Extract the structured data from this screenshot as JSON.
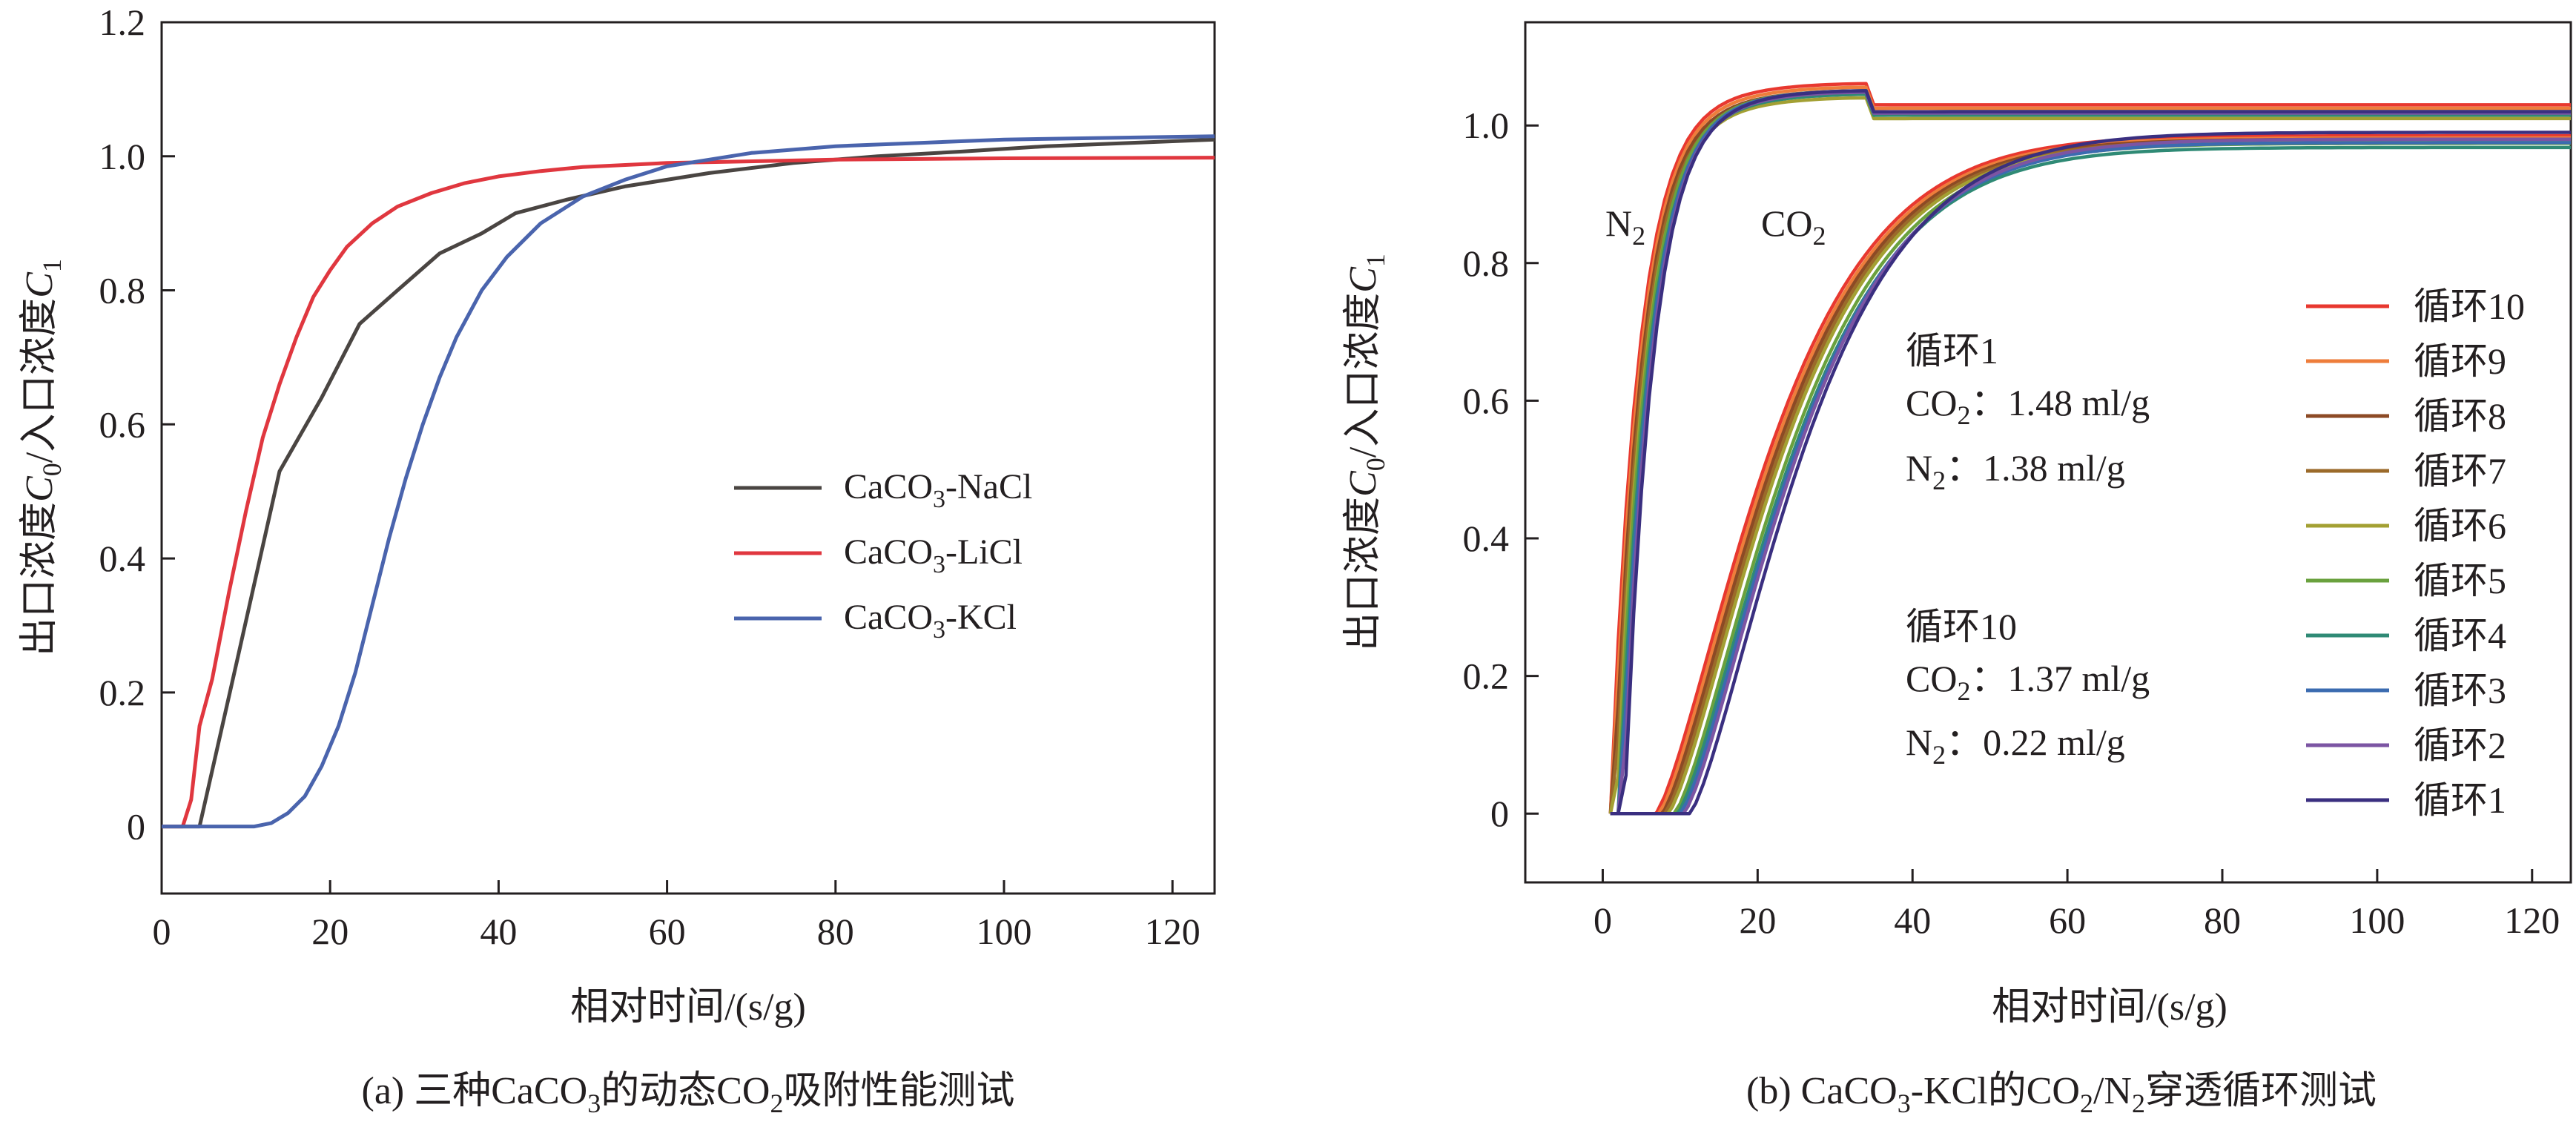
{
  "chart_data": [
    {
      "type": "line",
      "title": "三种CaCO₃的动态CO₂吸附性能测试",
      "caption": {
        "prefix": "(a) 三种CaCO",
        "sub1": "3",
        "mid": "的动态CO",
        "sub2": "2",
        "suffix": "吸附性能测试"
      },
      "xlabel": "相对时间/(s/g)",
      "ylabel": {
        "part1": "出口浓度",
        "sym1": "C",
        "sub1": "0",
        "part2": "/入口浓度",
        "sym2": "C",
        "sub2": "1"
      },
      "xlim": [
        0,
        125
      ],
      "ylim": [
        -0.1,
        1.2
      ],
      "xticks": [
        0,
        20,
        40,
        60,
        80,
        100,
        120
      ],
      "xtick_labels": [
        "0",
        "20",
        "40",
        "60",
        "80",
        "100",
        "120"
      ],
      "yticks": [
        0,
        0.2,
        0.4,
        0.6,
        0.8,
        1.0,
        1.2
      ],
      "ytick_labels": [
        "0",
        "0.2",
        "0.4",
        "0.6",
        "0.8",
        "1.0",
        "1.2"
      ],
      "legend_position": "center-right",
      "series": [
        {
          "name": "CaCO₃-NaCl",
          "label_base": "CaCO",
          "label_sub": "3",
          "label_rest": "-NaCl",
          "color": "#4a4542",
          "points": [
            [
              0,
              0
            ],
            [
              4.5,
              0
            ],
            [
              9,
              0.25
            ],
            [
              14,
              0.53
            ],
            [
              19,
              0.64
            ],
            [
              23.5,
              0.75
            ],
            [
              28,
              0.8
            ],
            [
              33,
              0.855
            ],
            [
              38,
              0.885
            ],
            [
              42,
              0.915
            ],
            [
              48,
              0.935
            ],
            [
              55,
              0.955
            ],
            [
              65,
              0.975
            ],
            [
              75,
              0.99
            ],
            [
              85,
              1.0
            ],
            [
              95,
              1.007
            ],
            [
              105,
              1.015
            ],
            [
              115,
              1.02
            ],
            [
              125,
              1.025
            ]
          ]
        },
        {
          "name": "CaCO₃-LiCl",
          "label_base": "CaCO",
          "label_sub": "3",
          "label_rest": "-LiCl",
          "color": "#e0373f",
          "points": [
            [
              0,
              0
            ],
            [
              2.5,
              0
            ],
            [
              3.5,
              0.04
            ],
            [
              4.5,
              0.15
            ],
            [
              6,
              0.22
            ],
            [
              8,
              0.35
            ],
            [
              10,
              0.47
            ],
            [
              12,
              0.58
            ],
            [
              14,
              0.66
            ],
            [
              16,
              0.73
            ],
            [
              18,
              0.79
            ],
            [
              20,
              0.83
            ],
            [
              22,
              0.865
            ],
            [
              25,
              0.9
            ],
            [
              28,
              0.925
            ],
            [
              32,
              0.945
            ],
            [
              36,
              0.96
            ],
            [
              40,
              0.97
            ],
            [
              45,
              0.978
            ],
            [
              50,
              0.984
            ],
            [
              60,
              0.99
            ],
            [
              80,
              0.995
            ],
            [
              100,
              0.997
            ],
            [
              125,
              0.998
            ]
          ]
        },
        {
          "name": "CaCO₃-KCl",
          "label_base": "CaCO",
          "label_sub": "3",
          "label_rest": "-KCl",
          "color": "#4a64ad",
          "points": [
            [
              0,
              0
            ],
            [
              11,
              0
            ],
            [
              13,
              0.005
            ],
            [
              15,
              0.02
            ],
            [
              17,
              0.045
            ],
            [
              19,
              0.09
            ],
            [
              21,
              0.15
            ],
            [
              23,
              0.23
            ],
            [
              25,
              0.33
            ],
            [
              27,
              0.43
            ],
            [
              29,
              0.52
            ],
            [
              31,
              0.6
            ],
            [
              33,
              0.67
            ],
            [
              35,
              0.73
            ],
            [
              38,
              0.8
            ],
            [
              41,
              0.85
            ],
            [
              45,
              0.9
            ],
            [
              50,
              0.94
            ],
            [
              55,
              0.965
            ],
            [
              60,
              0.985
            ],
            [
              70,
              1.005
            ],
            [
              80,
              1.015
            ],
            [
              90,
              1.02
            ],
            [
              100,
              1.025
            ],
            [
              110,
              1.027
            ],
            [
              125,
              1.03
            ]
          ]
        }
      ]
    },
    {
      "type": "line",
      "title": "CaCO₃-KCl的CO₂/N₂穿透循环测试",
      "caption": {
        "prefix": "(b) CaCO",
        "sub1": "3",
        "mid1": "-KCl的CO",
        "sub2": "2",
        "mid2": "/N",
        "sub3": "2",
        "suffix": "穿透循环测试"
      },
      "xlabel": "相对时间/(s/g)",
      "ylabel": {
        "part1": "出口浓度",
        "sym1": "C",
        "sub1": "0",
        "part2": "/入口浓度",
        "sym2": "C",
        "sub2": "1"
      },
      "xlim": [
        -10,
        125
      ],
      "ylim": [
        -0.1,
        1.15
      ],
      "xticks": [
        0,
        20,
        40,
        60,
        80,
        100,
        120
      ],
      "xtick_labels": [
        "0",
        "20",
        "40",
        "60",
        "80",
        "100",
        "120"
      ],
      "yticks": [
        0,
        0.2,
        0.4,
        0.6,
        0.8,
        1.0
      ],
      "ytick_labels": [
        "0",
        "0.2",
        "0.4",
        "0.6",
        "0.8",
        "1.0"
      ],
      "annotations": {
        "n2": {
          "base": "N",
          "sub": "2"
        },
        "co2": {
          "base": "CO",
          "sub": "2"
        },
        "cycle1_title": "循环1",
        "cycle1_co2": {
          "base": "CO",
          "sub": "2",
          "rest": "：1.48 ml/g"
        },
        "cycle1_n2": {
          "base": "N",
          "sub": "2",
          "rest": "：1.38 ml/g"
        },
        "cycle10_title": "循环10",
        "cycle10_co2": {
          "base": "CO",
          "sub": "2",
          "rest": "：1.37 ml/g"
        },
        "cycle10_n2": {
          "base": "N",
          "sub": "2",
          "rest": "：0.22 ml/g"
        }
      },
      "legend_position": "right",
      "series": [
        {
          "name": "循环10",
          "color": "#e8382f",
          "n2_delay": 0.0,
          "n2_plateau": 1.03,
          "co2_delay": 6.5,
          "co2_plateau": 0.985
        },
        {
          "name": "循环9",
          "color": "#ee7d3b",
          "n2_delay": 0.2,
          "n2_plateau": 1.025,
          "co2_delay": 6.0,
          "co2_plateau": 0.982
        },
        {
          "name": "循环8",
          "color": "#8c4a25",
          "n2_delay": 0.4,
          "n2_plateau": 1.02,
          "co2_delay": 5.5,
          "co2_plateau": 0.98
        },
        {
          "name": "循环7",
          "color": "#9b6a2a",
          "n2_delay": 0.6,
          "n2_plateau": 1.015,
          "co2_delay": 5.0,
          "co2_plateau": 0.978
        },
        {
          "name": "循环6",
          "color": "#a3a033",
          "n2_delay": 0.8,
          "n2_plateau": 1.01,
          "co2_delay": 4.5,
          "co2_plateau": 0.976
        },
        {
          "name": "循环5",
          "color": "#6aa13e",
          "n2_delay": 1.0,
          "n2_plateau": 1.02,
          "co2_delay": 3.5,
          "co2_plateau": 0.974
        },
        {
          "name": "循环4",
          "color": "#2f8a75",
          "n2_delay": 1.2,
          "n2_plateau": 1.015,
          "co2_delay": 3.0,
          "co2_plateau": 0.968
        },
        {
          "name": "循环3",
          "color": "#3b6bb0",
          "n2_delay": 1.4,
          "n2_plateau": 1.02,
          "co2_delay": 2.5,
          "co2_plateau": 0.975
        },
        {
          "name": "循环2",
          "color": "#7c55a3",
          "n2_delay": 1.6,
          "n2_plateau": 1.018,
          "co2_delay": 2.0,
          "co2_plateau": 0.98
        },
        {
          "name": "循环1",
          "color": "#3a2f80",
          "n2_delay": 1.8,
          "n2_plateau": 1.02,
          "co2_delay": 1.0,
          "co2_plateau": 0.99
        }
      ]
    }
  ]
}
